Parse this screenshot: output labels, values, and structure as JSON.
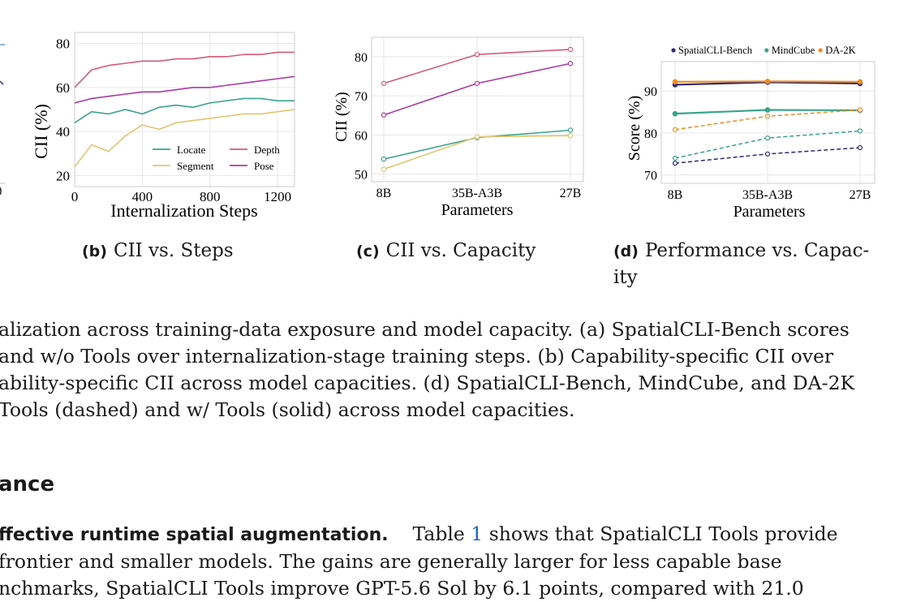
{
  "figures": {
    "b": {
      "caption_label": "(b)",
      "caption_text": "CII vs. Steps",
      "chart_data": {
        "type": "line",
        "xlabel": "Internalization Steps",
        "ylabel": "CII (%)",
        "xticks": [
          "0",
          "400",
          "800",
          "1200"
        ],
        "yticks": [
          "20",
          "40",
          "60",
          "80"
        ],
        "xlim": [
          0,
          1300
        ],
        "ylim": [
          15,
          85
        ],
        "legend_position": "bottom-right",
        "series": [
          {
            "name": "Locate",
            "color": "#3aa38c",
            "x": [
              0,
              100,
              200,
              300,
              400,
              500,
              600,
              700,
              800,
              900,
              1000,
              1100,
              1200,
              1300
            ],
            "y": [
              44,
              49,
              48,
              50,
              48,
              51,
              52,
              51,
              53,
              54,
              55,
              55,
              54,
              54
            ]
          },
          {
            "name": "Segment",
            "color": "#e3c46e",
            "x": [
              0,
              100,
              200,
              300,
              400,
              500,
              600,
              700,
              800,
              900,
              1000,
              1100,
              1200,
              1300
            ],
            "y": [
              24,
              34,
              31,
              38,
              43,
              41,
              44,
              45,
              46,
              47,
              48,
              48,
              49,
              50
            ]
          },
          {
            "name": "Depth",
            "color": "#d45a78",
            "x": [
              0,
              100,
              200,
              300,
              400,
              500,
              600,
              700,
              800,
              900,
              1000,
              1100,
              1200,
              1300
            ],
            "y": [
              60,
              68,
              70,
              71,
              72,
              72,
              73,
              73,
              74,
              74,
              75,
              75,
              76,
              76
            ]
          },
          {
            "name": "Pose",
            "color": "#a83aa3",
            "x": [
              0,
              100,
              200,
              300,
              400,
              500,
              600,
              700,
              800,
              900,
              1000,
              1100,
              1200,
              1300
            ],
            "y": [
              53,
              55,
              56,
              57,
              58,
              58,
              59,
              60,
              60,
              61,
              62,
              63,
              64,
              65
            ]
          }
        ]
      }
    },
    "c": {
      "caption_label": "(c)",
      "caption_text": "CII vs. Capacity",
      "chart_data": {
        "type": "line",
        "xlabel": "Parameters",
        "ylabel": "CII (%)",
        "categories": [
          "8B",
          "35B-A3B",
          "27B"
        ],
        "yticks": [
          "50",
          "60",
          "70",
          "80"
        ],
        "ylim": [
          48,
          85
        ],
        "series": [
          {
            "color": "#d45a78",
            "values": [
              73.2,
              80.6,
              81.9
            ]
          },
          {
            "color": "#a83aa3",
            "values": [
              65.1,
              73.2,
              78.3
            ]
          },
          {
            "color": "#3aa38c",
            "values": [
              53.8,
              59.3,
              61.2
            ]
          },
          {
            "color": "#e3c46e",
            "values": [
              51.2,
              59.5,
              59.8
            ]
          }
        ]
      }
    },
    "d": {
      "caption_label": "(d)",
      "caption_text_line1": "Performance vs. Capac-",
      "caption_text_line2": "ity",
      "chart_data": {
        "type": "line",
        "xlabel": "Parameters",
        "ylabel": "Score (%)",
        "categories": [
          "8B",
          "35B-A3B",
          "27B"
        ],
        "yticks": [
          "70",
          "80",
          "90"
        ],
        "ylim": [
          68,
          97
        ],
        "legend_position": "top",
        "legend": [
          {
            "name": "SpatialCLI-Bench",
            "color": "#2a2a7a"
          },
          {
            "name": "MindCube",
            "color": "#3aa38c"
          },
          {
            "name": "DA-2K",
            "color": "#f08c1e"
          }
        ],
        "series": [
          {
            "name": "SpatialCLI-Bench",
            "style": "solid",
            "color": "#2a2a7a",
            "values": [
              91.5,
              92.1,
              91.8
            ]
          },
          {
            "name": "DA-2K",
            "style": "solid",
            "color": "#f08c1e",
            "values": [
              92.2,
              92.3,
              92.2
            ]
          },
          {
            "name": "MindCube",
            "style": "solid",
            "color": "#3aa38c",
            "values": [
              84.6,
              85.5,
              85.4
            ]
          },
          {
            "name": "DA-2K",
            "style": "dashed",
            "color": "#f08c1e",
            "values": [
              80.8,
              84.0,
              85.5
            ]
          },
          {
            "name": "MindCube",
            "style": "dashed",
            "color": "#3aa38c",
            "values": [
              74.0,
              78.8,
              80.5
            ]
          },
          {
            "name": "SpatialCLI-Bench",
            "style": "dashed",
            "color": "#2a2a7a",
            "values": [
              72.8,
              75.0,
              76.5
            ]
          }
        ]
      }
    }
  },
  "figure_a_fragment": {
    "tick_label": "0"
  },
  "caption_lines": [
    "alization across training-data exposure and model capacity.  (a) SpatialCLI-Bench scores",
    "and  w/o  Tools  over  internalization-stage  training  steps.   (b)  Capability-specific  CII  over",
    "ability-specific CII across model capacities. (d) SpatialCLI-Bench, MindCube, and DA-2K",
    " Tools (dashed) and w/ Tools (solid) across model capacities."
  ],
  "section_heading": "ance",
  "body": {
    "line1_bold": "ffective runtime spatial augmentation.",
    "line1_pre": "Table ",
    "line1_ref": "1",
    "line1_post": " shows that SpatialCLI Tools provide",
    "line2": " frontier  and  smaller  models.   The  gains  are  generally  larger  for  less  capable  base",
    "line3": "nchmarks, SpatialCLI Tools improve GPT-5.6 Sol by 6.1 points, compared with 21.0"
  }
}
